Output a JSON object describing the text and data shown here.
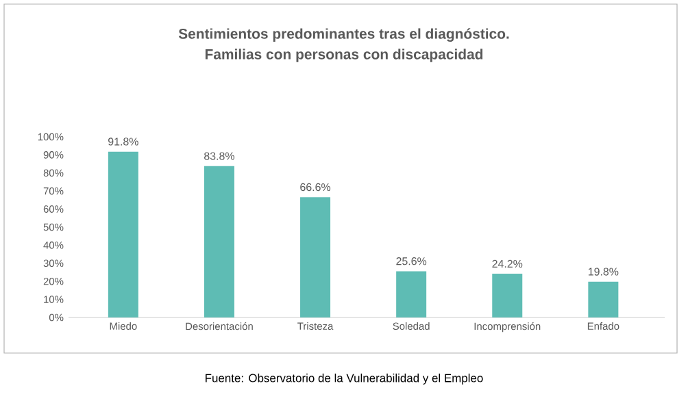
{
  "chart_data": {
    "type": "bar",
    "title": "Sentimientos predominantes tras el diagnóstico.\nFamilias con personas con discapacidad",
    "categories": [
      "Miedo",
      "Desorientación",
      "Tristeza",
      "Soledad",
      "Incomprensión",
      "Enfado"
    ],
    "values": [
      91.8,
      83.8,
      66.6,
      25.6,
      24.2,
      19.8
    ],
    "value_labels": [
      "91.8%",
      "83.8%",
      "66.6%",
      "25.6%",
      "24.2%",
      "19.8%"
    ],
    "color": "#5ebcb4",
    "ylim": [
      0,
      100
    ],
    "yticks": [
      {
        "value": 0,
        "label": "0%"
      },
      {
        "value": 10,
        "label": "10%"
      },
      {
        "value": 20,
        "label": "20%"
      },
      {
        "value": 30,
        "label": "30%"
      },
      {
        "value": 40,
        "label": "40%"
      },
      {
        "value": 50,
        "label": "50%"
      },
      {
        "value": 60,
        "label": "60%"
      },
      {
        "value": 70,
        "label": "70%"
      },
      {
        "value": 80,
        "label": "80%"
      },
      {
        "value": 90,
        "label": "90%"
      },
      {
        "value": 100,
        "label": "100%"
      }
    ],
    "annotations": [
      "Fuente: Observatorio de la Vulnerabilidad y el Empleo"
    ]
  }
}
